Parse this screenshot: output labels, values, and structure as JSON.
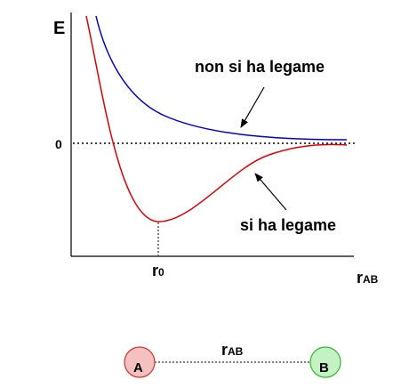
{
  "axis_labels": {
    "y": "E",
    "x_main": "r",
    "x_sub": "AB",
    "zero": "0",
    "r0_main": "r",
    "r0_sub": "0"
  },
  "annotations": {
    "no_bond": "non si ha legame",
    "bond": "si ha legame"
  },
  "atoms": {
    "a_label": "A",
    "b_label": "B",
    "distance_main": "r",
    "distance_sub": "AB",
    "a_fill": "#f4c0c0",
    "a_stroke": "#d03030",
    "b_fill": "#c4f2c4",
    "b_stroke": "#2eb82e"
  },
  "curve_colors": {
    "no_bond_curve": "#0000cc",
    "bond_curve": "#dd0000"
  }
}
